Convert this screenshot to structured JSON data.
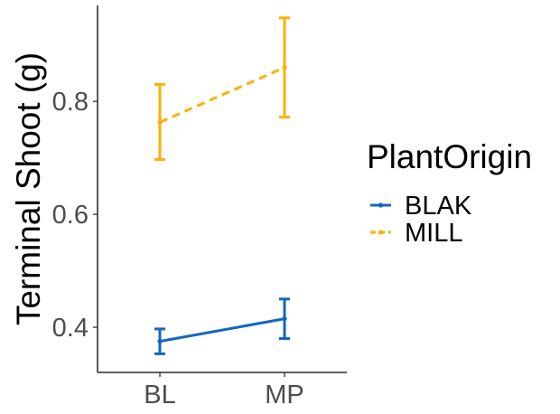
{
  "chart_data": {
    "type": "line",
    "ylabel": "Terminal Shoot (g)",
    "xlabel": "",
    "categories": [
      "BL",
      "MP"
    ],
    "yticks": [
      0.4,
      0.6,
      0.8
    ],
    "ytick_labels": [
      "0.4",
      "0.6",
      "0.8"
    ],
    "ylim": [
      0.32,
      0.97
    ],
    "grid": false,
    "legend": {
      "title": "PlantOrigin",
      "placement": "right"
    },
    "series": [
      {
        "name": "BLAK",
        "color": "#1565C0",
        "linestyle": "solid",
        "values": [
          0.375,
          0.415
        ],
        "error_low": [
          0.353,
          0.38
        ],
        "error_high": [
          0.397,
          0.45
        ]
      },
      {
        "name": "MILL",
        "color": "#FFB000",
        "linestyle": "dashed",
        "values": [
          0.763,
          0.86
        ],
        "error_low": [
          0.697,
          0.772
        ],
        "error_high": [
          0.83,
          0.948
        ]
      }
    ]
  }
}
